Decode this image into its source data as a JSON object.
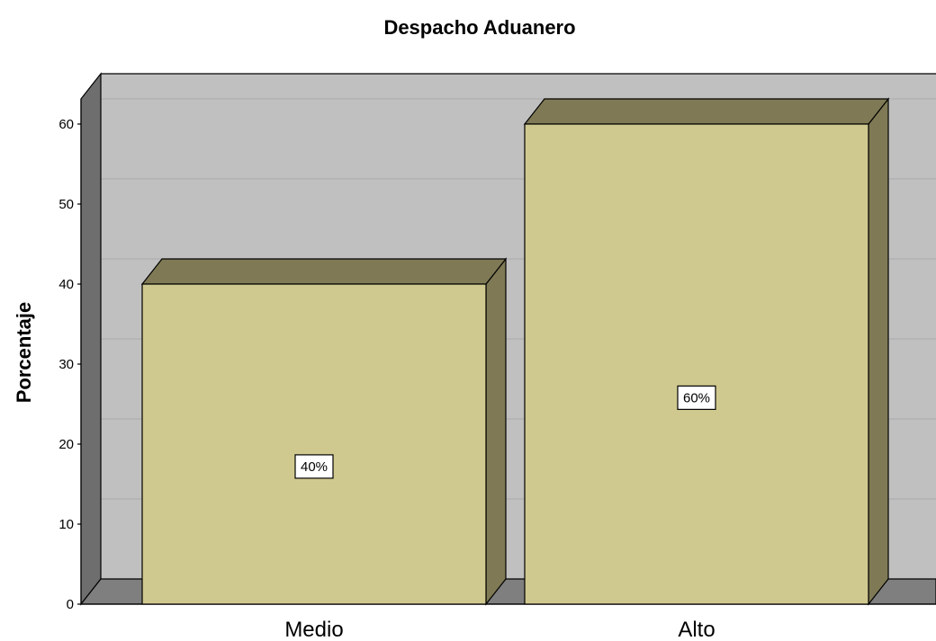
{
  "chart_data": {
    "type": "bar",
    "title": "Despacho Aduanero",
    "xlabel": "",
    "ylabel": "Porcentaje",
    "categories": [
      "Medio",
      "Alto"
    ],
    "values": [
      40,
      60
    ],
    "data_labels": [
      "40%",
      "60%"
    ],
    "yticks": [
      "0",
      "10",
      "20",
      "30",
      "40",
      "50",
      "60"
    ],
    "ylim": [
      0,
      60
    ],
    "grid": true,
    "legend": "none",
    "colors": {
      "bar_front": "#d0c98f",
      "bar_top": "#7f7a55",
      "bar_side": "#7f7a55",
      "plot_background": "#c0c0c0",
      "floor": "#7f7f7f",
      "wall_left": "#6e6e6e",
      "gridline": "#aaaaaa",
      "edge": "#000000"
    }
  }
}
